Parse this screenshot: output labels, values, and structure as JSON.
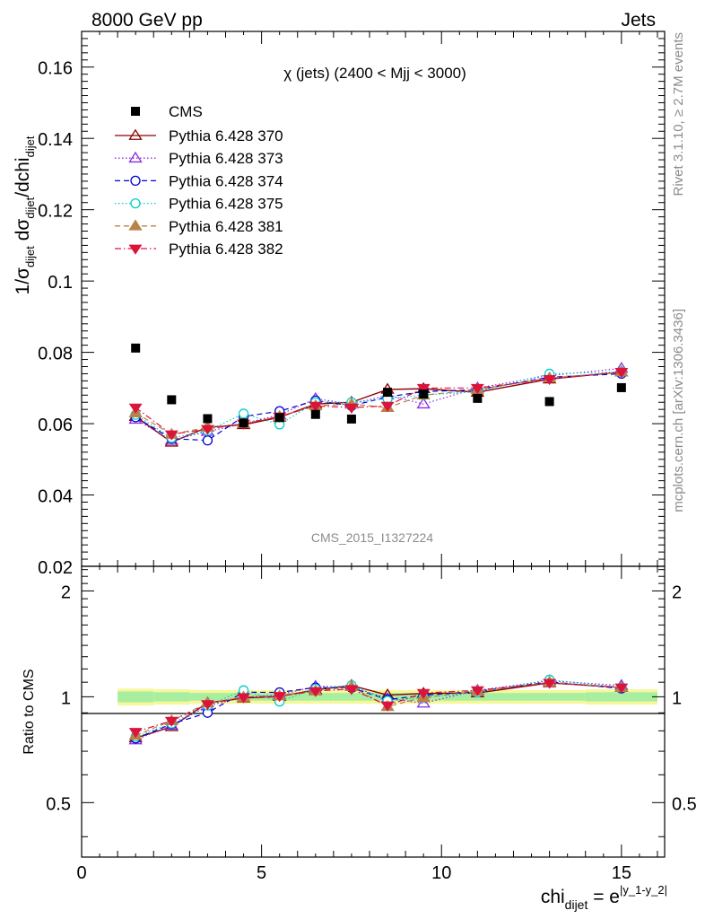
{
  "header": {
    "left": "8000 GeV pp",
    "right": "Jets"
  },
  "side_text": {
    "rivet": "Rivet 3.1.10, ≥ 2.7M events",
    "mcplots": "mcplots.cern.ch [arXiv:1306.3436]"
  },
  "chart_data": {
    "type": "scatter",
    "title": "χ (jets) (2400 < Mjj < 3000)",
    "watermark": "CMS_2015_I1327224",
    "xlabel": {
      "base": "chi",
      "sub": "dijet",
      "eq": " = e",
      "sup": "|y_1-y_2|"
    },
    "ylabel": {
      "p1": "1/σ",
      "s1": "dijet",
      "p2": " dσ",
      "s2": "dijet",
      "p3": "/dchi",
      "s3": "dijet"
    },
    "ratio_ylabel": "Ratio to CMS",
    "xlim": [
      0,
      16.2
    ],
    "ylim": [
      0.02,
      0.17
    ],
    "ratio_ylim": [
      0.35,
      2.35
    ],
    "grid": false,
    "legend_position": "top-left",
    "xticks": [
      "0",
      "5",
      "10",
      "15"
    ],
    "yticks": [
      "0.02",
      "0.04",
      "0.06",
      "0.08",
      "0.1",
      "0.12",
      "0.14",
      "0.16"
    ],
    "ratio_yticks": [
      "0.5",
      "1",
      "2"
    ],
    "x": [
      1.5,
      2.5,
      3.5,
      4.5,
      5.5,
      6.5,
      7.5,
      8.5,
      9.5,
      11.0,
      13.0,
      15.0
    ],
    "x_low": [
      1,
      2,
      3,
      4,
      5,
      6,
      7,
      8,
      9,
      10,
      12,
      14
    ],
    "x_high": [
      2,
      3,
      4,
      5,
      6,
      7,
      8,
      9,
      10,
      12,
      14,
      16
    ],
    "data": {
      "name": "CMS",
      "color": "#000000",
      "values": [
        0.0812,
        0.0667,
        0.0614,
        0.0602,
        0.0617,
        0.0626,
        0.0613,
        0.0688,
        0.0683,
        0.0671,
        0.0662,
        0.0701
      ],
      "band_inner": [
        0.035,
        0.03,
        0.025,
        0.025,
        0.025,
        0.025,
        0.025,
        0.025,
        0.025,
        0.025,
        0.025,
        0.03
      ],
      "band_outer": [
        0.055,
        0.05,
        0.045,
        0.045,
        0.045,
        0.045,
        0.045,
        0.045,
        0.045,
        0.045,
        0.045,
        0.05
      ]
    },
    "series": [
      {
        "name": "Pythia 6.428 370",
        "color": "#8b0000",
        "dash": "",
        "marker": "triangle-open",
        "values": [
          0.062,
          0.0548,
          0.059,
          0.0597,
          0.0618,
          0.0655,
          0.066,
          0.0696,
          0.0698,
          0.0688,
          0.0725,
          0.0745
        ]
      },
      {
        "name": "Pythia 6.428 373",
        "color": "#8a2be2",
        "dash": "1.5,2.5",
        "marker": "triangle-open",
        "values": [
          0.0612,
          0.0553,
          0.0578,
          0.06,
          0.0625,
          0.067,
          0.0655,
          0.068,
          0.0655,
          0.07,
          0.0735,
          0.0755
        ]
      },
      {
        "name": "Pythia 6.428 374",
        "color": "#0000cd",
        "dash": "6,4",
        "marker": "circle-open",
        "values": [
          0.0618,
          0.0558,
          0.0553,
          0.062,
          0.0635,
          0.0665,
          0.065,
          0.0675,
          0.069,
          0.0695,
          0.073,
          0.074
        ]
      },
      {
        "name": "Pythia 6.428 375",
        "color": "#00ced1",
        "dash": "1.5,2.5",
        "marker": "circle-open",
        "values": [
          0.0625,
          0.056,
          0.058,
          0.0628,
          0.0598,
          0.066,
          0.066,
          0.067,
          0.068,
          0.069,
          0.074,
          0.0745
        ]
      },
      {
        "name": "Pythia 6.428 381",
        "color": "#b8834a",
        "dash": "6,4",
        "marker": "triangle-filled",
        "values": [
          0.063,
          0.057,
          0.059,
          0.06,
          0.062,
          0.065,
          0.0655,
          0.0645,
          0.068,
          0.0695,
          0.0728,
          0.0745
        ]
      },
      {
        "name": "Pythia 6.428 382",
        "color": "#dc143c",
        "dash": "7,3,1.5,3",
        "marker": "triangledown-filled",
        "values": [
          0.0645,
          0.057,
          0.0585,
          0.06,
          0.062,
          0.065,
          0.0645,
          0.065,
          0.07,
          0.07,
          0.0725,
          0.0745
        ]
      }
    ]
  }
}
